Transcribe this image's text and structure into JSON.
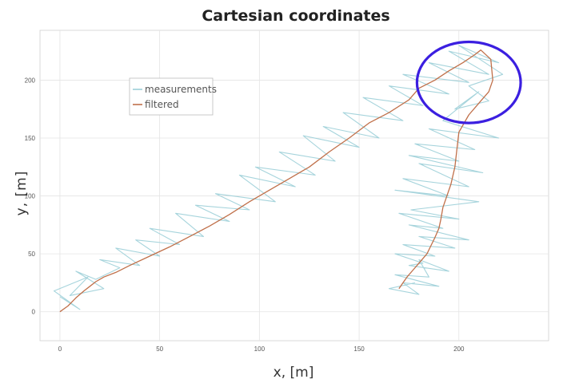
{
  "chart_data": {
    "type": "line",
    "title": "Cartesian coordinates",
    "xlabel": "x, [m]",
    "ylabel": "y, [m]",
    "xlim": [
      -10,
      245
    ],
    "ylim": [
      -25,
      243
    ],
    "xticks": [
      0,
      50,
      100,
      150,
      200
    ],
    "yticks": [
      0,
      50,
      100,
      150,
      200
    ],
    "grid": true,
    "legend": {
      "placement": "top-left",
      "entries": [
        "measurements",
        "filtered"
      ]
    },
    "colors": {
      "measurements": "#9ccfd8",
      "filtered": "#c0704a",
      "annotation": "#3b1fe0",
      "grid": "#e4e4e4"
    },
    "series": [
      {
        "name": "filtered",
        "x": [
          0,
          4,
          8,
          12,
          15,
          18,
          22,
          28,
          35,
          45,
          55,
          65,
          75,
          85,
          95,
          105,
          115,
          125,
          135,
          145,
          155,
          165,
          175,
          180,
          188,
          195,
          202,
          208,
          211,
          216,
          217,
          215,
          210,
          205,
          200,
          199,
          198,
          196,
          194,
          192,
          191,
          190,
          188,
          186,
          184,
          180,
          177,
          174,
          172,
          170
        ],
        "y": [
          0,
          5,
          12,
          18,
          22,
          26,
          30,
          34,
          40,
          48,
          56,
          65,
          74,
          84,
          95,
          105,
          115,
          125,
          138,
          150,
          163,
          172,
          183,
          193,
          200,
          208,
          215,
          222,
          226,
          218,
          200,
          190,
          180,
          170,
          155,
          140,
          125,
          110,
          100,
          90,
          80,
          72,
          64,
          57,
          50,
          42,
          36,
          30,
          25,
          20
        ]
      },
      {
        "name": "measurements",
        "x": [
          0,
          10,
          -3,
          14,
          5,
          22,
          8,
          18,
          30,
          20,
          40,
          28,
          50,
          38,
          60,
          45,
          72,
          58,
          85,
          68,
          95,
          78,
          108,
          90,
          118,
          98,
          128,
          110,
          138,
          122,
          150,
          132,
          160,
          142,
          172,
          152,
          182,
          165,
          195,
          172,
          205,
          185,
          215,
          195,
          220,
          200,
          222,
          205,
          215,
          198,
          210,
          192,
          220,
          185,
          208,
          178,
          200,
          175,
          212,
          180,
          205,
          172,
          195,
          168,
          210,
          176,
          200,
          170,
          192,
          175,
          205,
          180,
          198,
          172,
          188,
          168,
          182,
          175,
          195,
          180,
          185,
          168,
          190,
          172,
          180,
          165,
          178
        ],
        "y": [
          13,
          2,
          18,
          30,
          14,
          20,
          35,
          28,
          38,
          45,
          40,
          55,
          48,
          62,
          58,
          72,
          65,
          85,
          78,
          92,
          88,
          102,
          95,
          118,
          108,
          125,
          118,
          138,
          130,
          152,
          142,
          160,
          150,
          172,
          165,
          185,
          178,
          195,
          188,
          205,
          198,
          215,
          205,
          225,
          215,
          230,
          205,
          195,
          182,
          175,
          190,
          165,
          150,
          158,
          140,
          145,
          130,
          135,
          120,
          128,
          108,
          115,
          100,
          105,
          95,
          88,
          80,
          85,
          72,
          75,
          62,
          65,
          55,
          58,
          48,
          50,
          42,
          40,
          35,
          45,
          30,
          32,
          22,
          25,
          15,
          20,
          25
        ]
      }
    ],
    "annotation": {
      "shape": "ellipse",
      "center": [
        205,
        198
      ],
      "radii": [
        26,
        35
      ]
    }
  }
}
